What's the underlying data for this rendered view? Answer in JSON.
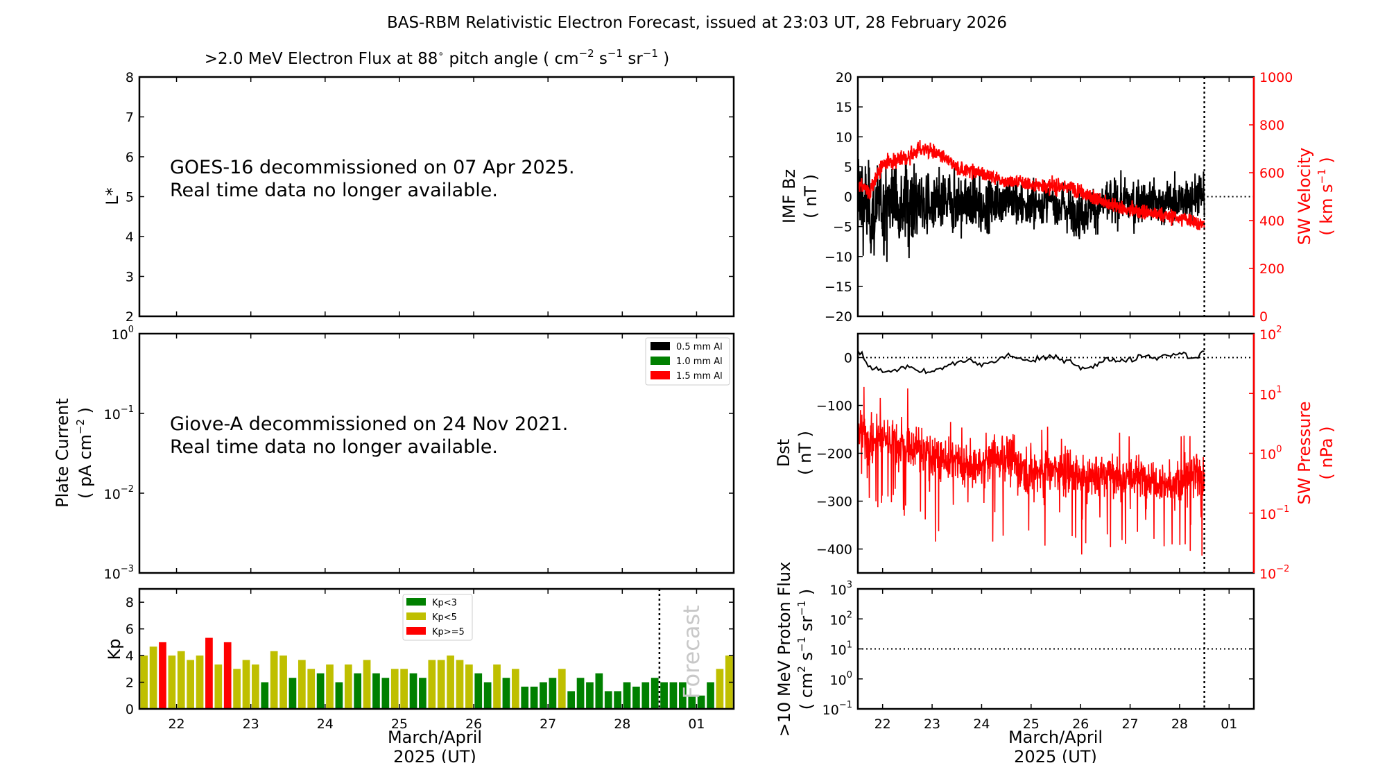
{
  "title": "BAS-RBM Relativistic Electron Forecast, issued at 23:03 UT, 28 February 2026",
  "colors": {
    "imf_bz": "#000000",
    "sw": "#ff0000",
    "kp_low": "#008000",
    "kp_mid": "#bfbf00",
    "kp_high": "#ff0000",
    "forecast_text": "#c8c8c8"
  },
  "time_axis": {
    "tick_labels": [
      "22",
      "23",
      "24",
      "25",
      "26",
      "27",
      "28",
      "01"
    ],
    "xlabel_line1": "March/April",
    "xlabel_line2": "2025 (UT)"
  },
  "electron_panel": {
    "title_main": ">2.0 MeV Electron Flux at 88",
    "title_deg": "∘",
    "title_rest": " pitch angle ( cm",
    "title_e1": "−2",
    "title_s": " s",
    "title_e2": "−1",
    "title_sr": " sr",
    "title_e3": "−1",
    "title_end": " )",
    "ylabel": "L*",
    "yticks": [
      "2",
      "3",
      "4",
      "5",
      "6",
      "7",
      "8"
    ],
    "ylim": [
      2,
      8
    ],
    "message_line1": "GOES-16 decommissioned on 07 Apr 2025.",
    "message_line2": "Real time data no longer available."
  },
  "plate_panel": {
    "ylabel_line1": "Plate Current",
    "ylabel_line2_a": "( pA cm",
    "ylabel_line2_exp": "−2",
    "ylabel_line2_b": " )",
    "ytick_exponents": [
      "−3",
      "−2",
      "−1",
      "0"
    ],
    "ylim": [
      0.001,
      1
    ],
    "yscale": "log",
    "legend": [
      {
        "label": "0.5 mm Al",
        "color": "#000000"
      },
      {
        "label": "1.0 mm Al",
        "color": "#008000"
      },
      {
        "label": "1.5 mm Al",
        "color": "#ff0000"
      }
    ],
    "message_line1": "Giove-A decommissioned on 24 Nov 2021.",
    "message_line2": "Real time data no longer available."
  },
  "chart_data": [
    {
      "type": "bar",
      "name": "kp",
      "ylabel": "Kp",
      "ylim": [
        0,
        9
      ],
      "yticks": [
        "0",
        "2",
        "4",
        "6",
        "8"
      ],
      "interval_hours": 3,
      "values": [
        4.0,
        4.67,
        5.0,
        4.0,
        4.33,
        3.67,
        4.0,
        5.33,
        3.33,
        5.0,
        3.0,
        3.67,
        3.33,
        2.0,
        4.33,
        4.0,
        2.33,
        3.67,
        3.0,
        2.67,
        3.33,
        2.0,
        3.33,
        2.67,
        3.67,
        2.67,
        2.33,
        3.0,
        3.0,
        2.67,
        2.33,
        3.67,
        3.67,
        4.0,
        3.67,
        3.33,
        2.67,
        2.0,
        3.33,
        2.33,
        3.0,
        1.67,
        1.67,
        2.0,
        2.33,
        3.0,
        1.33,
        2.33,
        2.0,
        2.67,
        1.33,
        1.33,
        2.0,
        1.67,
        2.0,
        2.33,
        2.0,
        2.0,
        2.0,
        1.0,
        1.0,
        2.0,
        3.0,
        4.0
      ],
      "forecast_from_index": 56,
      "forecast_label": "Forecast",
      "legend": [
        {
          "label": "Kp<3",
          "color": "#008000"
        },
        {
          "label": "Kp<5",
          "color": "#bfbf00"
        },
        {
          "label": "Kp>=5",
          "color": "#ff0000"
        }
      ],
      "legend_position": "top-center"
    },
    {
      "type": "line",
      "name": "imf_sw_velocity",
      "ylabel_line1": "IMF Bz",
      "ylabel_line2": "( nT )",
      "ylim": [
        -20,
        20
      ],
      "yticks": [
        "−20",
        "−15",
        "−10",
        "−5",
        "0",
        "5",
        "10",
        "15",
        "20"
      ],
      "y2label_line1": "SW Velocity",
      "y2label_line2_a": "( km s",
      "y2label_line2_exp": "−1",
      "y2label_line2_b": " )",
      "y2lim": [
        0,
        1000
      ],
      "y2ticks": [
        "0",
        "200",
        "400",
        "600",
        "800",
        "1000"
      ],
      "sample_interval_hours": 6,
      "imf_bz": [
        2,
        -3,
        -2,
        0,
        -1,
        -1,
        -2,
        -1,
        -1,
        -1,
        -2,
        -1,
        0,
        -1,
        -2,
        -1,
        -1,
        -2,
        -3,
        -2,
        -1,
        -1,
        -1,
        -1,
        -1,
        -1,
        -1,
        0,
        0
      ],
      "sw_velocity": [
        550,
        520,
        640,
        650,
        660,
        700,
        690,
        660,
        620,
        610,
        600,
        580,
        560,
        560,
        550,
        550,
        540,
        540,
        520,
        500,
        470,
        460,
        440,
        440,
        430,
        420,
        410,
        400,
        380
      ]
    },
    {
      "type": "line",
      "name": "dst_sw_pressure",
      "ylabel_line1": "Dst",
      "ylabel_line2": "( nT )",
      "ylim": [
        -450,
        50
      ],
      "yticks": [
        "−400",
        "−300",
        "−200",
        "−100",
        "0"
      ],
      "y2label_line1": "SW Pressure",
      "y2label_line2": "( nPa )",
      "y2lim": [
        0.01,
        100
      ],
      "y2scale": "log",
      "y2tick_exponents": [
        "−2",
        "−1",
        "0",
        "1",
        "2"
      ],
      "sample_interval_hours": 6,
      "dst": [
        15,
        -20,
        -30,
        -25,
        -20,
        -30,
        -30,
        -20,
        -10,
        -5,
        -15,
        -10,
        5,
        0,
        -10,
        0,
        0,
        -5,
        -20,
        -20,
        -5,
        -5,
        -5,
        5,
        0,
        5,
        10,
        0,
        10
      ],
      "sw_pressure": [
        2.5,
        1.5,
        2.0,
        1.5,
        1.2,
        1.2,
        1.0,
        0.8,
        0.7,
        0.6,
        0.6,
        0.8,
        0.9,
        0.6,
        0.5,
        0.5,
        0.5,
        0.5,
        0.4,
        0.4,
        0.5,
        0.4,
        0.4,
        0.4,
        0.4,
        0.3,
        0.3,
        0.4,
        0.4
      ]
    },
    {
      "type": "line",
      "name": "proton_flux",
      "ylabel_line1": ">10 MeV Proton Flux",
      "ylabel_line2_a": "( cm",
      "ylabel_line2_e1": "2",
      "ylabel_line2_b": " s",
      "ylabel_line2_e2": "−1",
      "ylabel_line2_c": " sr",
      "ylabel_line2_e3": "−1",
      "ylabel_line2_d": " )",
      "ylim": [
        0.1,
        1000
      ],
      "yscale": "log",
      "ytick_exponents": [
        "−1",
        "0",
        "1",
        "2",
        "3"
      ],
      "threshold": 10,
      "values": []
    }
  ]
}
